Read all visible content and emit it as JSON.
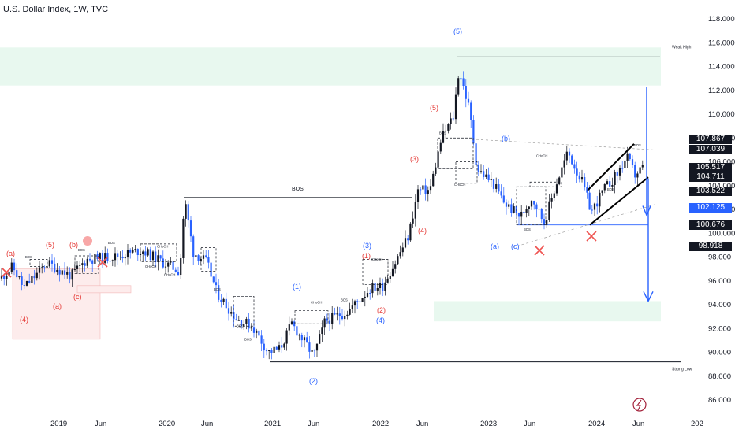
{
  "title": "U.S. Dollar Index, 1W, TVC",
  "chart_data": {
    "type": "candlestick",
    "symbol": "U.S. Dollar Index",
    "interval": "1W",
    "source": "TVC",
    "y_range": [
      85,
      119
    ],
    "y_ticks": [
      "118.000",
      "116.000",
      "114.000",
      "112.000",
      "110.000",
      "108.000",
      "106.000",
      "104.000",
      "102.000",
      "100.000",
      "98.000",
      "96.000",
      "94.000",
      "92.000",
      "90.000",
      "88.000",
      "86.000"
    ],
    "x_ticks": [
      "2019",
      "Jun",
      "2020",
      "Jun",
      "2021",
      "Jun",
      "2022",
      "Jun",
      "2023",
      "Jun",
      "2024",
      "Jun",
      "202"
    ],
    "price_badges": [
      {
        "label": "107.867",
        "value": 107.867,
        "style": "dark"
      },
      {
        "label": "107.039",
        "value": 107.039,
        "style": "dark"
      },
      {
        "label": "105.517",
        "value": 105.517,
        "style": "dark"
      },
      {
        "label": "104.711",
        "value": 104.711,
        "style": "dark"
      },
      {
        "label": "103.522",
        "value": 103.522,
        "style": "dark"
      },
      {
        "label": "102.125",
        "value": 102.125,
        "style": "blue"
      },
      {
        "label": "100.676",
        "value": 100.676,
        "style": "dark"
      },
      {
        "label": "98.918",
        "value": 98.918,
        "style": "dark"
      }
    ],
    "horizontal_levels": [
      {
        "label": "Weak High",
        "value": 114.8
      },
      {
        "label": "Strong Low",
        "value": 89.2
      },
      {
        "label": "BOS",
        "value": 103.0
      }
    ],
    "wave_labels": [
      {
        "text": "(5)",
        "color": "#2962ff"
      },
      {
        "text": "(5)",
        "color": "#e53935"
      },
      {
        "text": "(3)",
        "color": "#e53935"
      },
      {
        "text": "(4)",
        "color": "#e53935"
      },
      {
        "text": "(b)",
        "color": "#2962ff"
      },
      {
        "text": "(a)",
        "color": "#2962ff"
      },
      {
        "text": "(c)",
        "color": "#2962ff"
      },
      {
        "text": "(3)",
        "color": "#2962ff"
      },
      {
        "text": "(1)",
        "color": "#e53935"
      },
      {
        "text": "(2)",
        "color": "#e53935"
      },
      {
        "text": "(4)",
        "color": "#2962ff"
      },
      {
        "text": "(1)",
        "color": "#2962ff"
      },
      {
        "text": "(2)",
        "color": "#2962ff"
      },
      {
        "text": "(a)",
        "color": "#e53935"
      },
      {
        "text": "(5)",
        "color": "#e53935"
      },
      {
        "text": "(b)",
        "color": "#e53935"
      },
      {
        "text": "(a)",
        "color": "#e53935"
      },
      {
        "text": "(c)",
        "color": "#e53935"
      },
      {
        "text": "(4)",
        "color": "#e53935"
      }
    ],
    "structure_labels": [
      "BOS",
      "CHoCH"
    ],
    "colors": {
      "up": "#131722",
      "down": "#2962ff",
      "zone": "#e8f8ef",
      "red_zone": "#fdecec",
      "accent_red": "#ef5350"
    }
  }
}
